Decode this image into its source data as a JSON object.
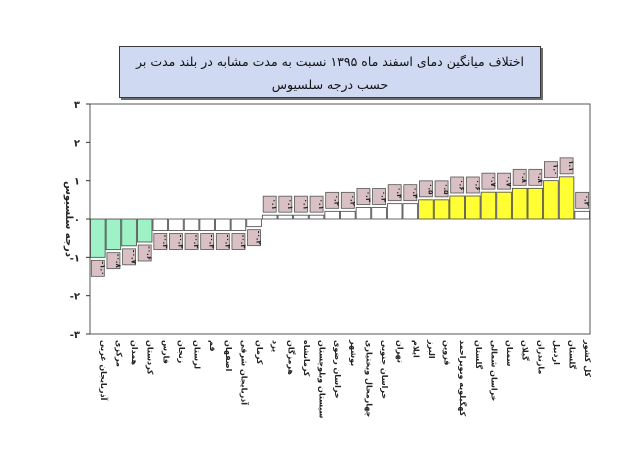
{
  "chart_data": {
    "type": "bar",
    "title": "اختلاف میانگین دمای اسفند ماه ۱۳۹۵ نسبت به مدت مشابه در بلند مدت بر حسب درجه سلسیوس",
    "ylabel": "درجه سلسیوس",
    "xlabel": "",
    "ylim": [
      -3,
      3
    ],
    "yticks": [
      3,
      2,
      1,
      0,
      -1,
      -2,
      -3
    ],
    "ytick_labels": [
      "۳",
      "۲",
      "۱",
      "۰",
      "-۱",
      "-۲",
      "-۳"
    ],
    "grid": false,
    "categories": [
      "آذربایجان غربی",
      "مرکزی",
      "همدان",
      "کردستان",
      "فارس",
      "زنجان",
      "لرستان",
      "قم",
      "اصفهان",
      "آذربایجان شرقی",
      "کرمان",
      "یزد",
      "هرمزگان",
      "کرمانشاه",
      "سیستان وبلوچستان",
      "خراسان رضوی",
      "بوشهر",
      "چهارمحال وبختیاری",
      "خراسان جنوبی",
      "تهران",
      "ایلام",
      "البرز",
      "قزوین",
      "کهگیلویه وبویراحمد",
      "گلستان",
      "خراسان شمالی",
      "سمنان",
      "گیلان",
      "مازندران",
      "اردبیل",
      "گلستان",
      "کل کشور"
    ],
    "values": [
      -1.0,
      -0.8,
      -0.7,
      -0.6,
      -0.3,
      -0.3,
      -0.3,
      -0.3,
      -0.3,
      -0.3,
      -0.2,
      0.1,
      0.1,
      0.1,
      0.1,
      0.2,
      0.2,
      0.3,
      0.3,
      0.4,
      0.4,
      0.5,
      0.5,
      0.6,
      0.6,
      0.7,
      0.7,
      0.8,
      0.8,
      1.0,
      1.1,
      0.2
    ],
    "data_labels": [
      "-۱.۰",
      "-۰.۸",
      "-۰.۷",
      "-۰.۶",
      "-۰.۳",
      "-۰.۳",
      "-۰.۳",
      "-۰.۳",
      "-۰.۳",
      "-۰.۳",
      "-۰.۲",
      "۰.۱",
      "۰.۱",
      "۰.۱",
      "۰.۱",
      "۰.۲",
      "۰.۲",
      "۰.۳",
      "۰.۳",
      "۰.۴",
      "۰.۴",
      "۰.۵",
      "۰.۵",
      "۰.۶",
      "۰.۶",
      "۰.۷",
      "۰.۷",
      "۰.۸",
      "۰.۸",
      "۱.۰",
      "۱.۱",
      "۰.۲"
    ],
    "bar_colors": [
      "#9ef2c5",
      "#9ef2c5",
      "#9ef2c5",
      "#9ef2c5",
      "#ffffff",
      "#ffffff",
      "#ffffff",
      "#ffffff",
      "#ffffff",
      "#ffffff",
      "#ffffff",
      "#ffffff",
      "#ffffff",
      "#ffffff",
      "#ffffff",
      "#ffffff",
      "#ffffff",
      "#ffffff",
      "#ffffff",
      "#ffffff",
      "#ffffff",
      "#ffff33",
      "#ffff33",
      "#ffff33",
      "#ffff33",
      "#ffff33",
      "#ffff33",
      "#ffff33",
      "#ffff33",
      "#ffff33",
      "#ffff33",
      "#ffffff"
    ],
    "label_box_color": "#d9c0c4",
    "title_box_color": "#cfd9f1"
  }
}
